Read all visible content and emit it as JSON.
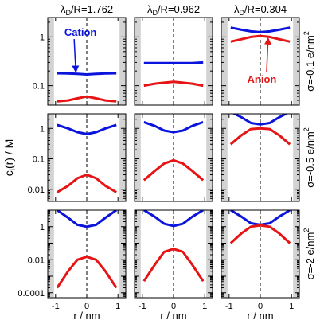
{
  "chart_data": {
    "type": "line",
    "x_label": "r / nm",
    "y_label_base": "c",
    "y_label_sub": "i",
    "y_label_rest": "(r) / M",
    "column_prefix_main": "λ",
    "column_prefix_sub": "D",
    "column_prefix_rest": "/R=",
    "column_values": [
      "1.762",
      "0.962",
      "0.304"
    ],
    "row_labels": [
      {
        "main": "σ=-0.1 e/nm",
        "sup": "2"
      },
      {
        "main": "σ=-0.5 e/nm",
        "sup": "2"
      },
      {
        "main": "σ=-2 e/nm",
        "sup": "2"
      }
    ],
    "x_ticks": [
      -1,
      0,
      1
    ],
    "xlim": [
      -1.25,
      1.25
    ],
    "y_scale": "log",
    "rows_ylim": [
      [
        0.04,
        2.5
      ],
      [
        0.004,
        3
      ],
      [
        5e-05,
        10
      ]
    ],
    "y_tick_labels": [
      [
        {
          "v": 1,
          "t": "1"
        },
        {
          "v": 0.1,
          "t": "0.1"
        }
      ],
      [
        {
          "v": 1,
          "t": "1"
        },
        {
          "v": 0.1,
          "t": "0.1"
        },
        {
          "v": 0.01,
          "t": "0.01"
        }
      ],
      [
        {
          "v": 1,
          "t": "1"
        },
        {
          "v": 0.01,
          "t": "0.01"
        },
        {
          "v": 0.0001,
          "t": "0.0001"
        }
      ]
    ],
    "series_colors": {
      "Cation": "#0a14dc",
      "Anion": "#e61414"
    },
    "annotations": [
      {
        "text": "Cation",
        "panel": [
          0,
          0
        ],
        "color": "#0a14dc",
        "pos": [
          -0.2,
          1.05
        ],
        "arrow_to": [
          -0.35,
          0.19
        ]
      },
      {
        "text": "Anion",
        "panel": [
          0,
          2
        ],
        "color": "#e61414",
        "pos": [
          0.05,
          0.115
        ],
        "arrow_to": [
          0.25,
          0.95
        ]
      }
    ],
    "panels": [
      [
        {
          "x": [
            -0.95,
            -0.6,
            -0.3,
            0,
            0.3,
            0.6,
            0.95
          ],
          "cation": [
            0.18,
            0.178,
            0.175,
            0.17,
            0.175,
            0.178,
            0.18
          ],
          "anion": [
            0.048,
            0.05,
            0.055,
            0.06,
            0.055,
            0.05,
            0.048
          ]
        },
        {
          "x": [
            -0.95,
            -0.6,
            -0.3,
            0,
            0.3,
            0.6,
            0.95
          ],
          "cation": [
            0.29,
            0.29,
            0.29,
            0.29,
            0.29,
            0.29,
            0.3
          ],
          "anion": [
            0.1,
            0.11,
            0.115,
            0.12,
            0.115,
            0.11,
            0.1
          ]
        },
        {
          "x": [
            -0.95,
            -0.6,
            -0.3,
            0,
            0.3,
            0.6,
            0.95
          ],
          "cation": [
            1.55,
            1.4,
            1.3,
            1.25,
            1.3,
            1.4,
            1.55
          ],
          "anion": [
            0.8,
            0.9,
            1.0,
            1.05,
            1.0,
            0.9,
            0.8
          ]
        }
      ],
      [
        {
          "x": [
            -0.95,
            -0.6,
            -0.3,
            0,
            0.3,
            0.6,
            0.95
          ],
          "cation": [
            1.3,
            1.0,
            0.75,
            0.65,
            0.75,
            1.0,
            1.3
          ],
          "anion": [
            0.008,
            0.013,
            0.023,
            0.03,
            0.023,
            0.013,
            0.008
          ]
        },
        {
          "x": [
            -0.95,
            -0.6,
            -0.3,
            0,
            0.3,
            0.6,
            0.95
          ],
          "cation": [
            1.6,
            1.2,
            0.85,
            0.75,
            0.85,
            1.2,
            1.6
          ],
          "anion": [
            0.02,
            0.04,
            0.07,
            0.09,
            0.07,
            0.04,
            0.02
          ]
        },
        {
          "x": [
            -0.95,
            -0.6,
            -0.3,
            0,
            0.3,
            0.6,
            0.95
          ],
          "cation": [
            3.5,
            2.3,
            1.5,
            1.35,
            1.5,
            2.3,
            3.5
          ],
          "anion": [
            0.3,
            0.6,
            0.95,
            1.0,
            0.95,
            0.6,
            0.3
          ]
        }
      ],
      [
        {
          "x": [
            -0.95,
            -0.6,
            -0.3,
            0,
            0.3,
            0.6,
            0.95
          ],
          "cation": [
            10,
            3.5,
            1.3,
            1.0,
            1.3,
            3.5,
            10
          ],
          "anion": [
            0.0002,
            0.002,
            0.01,
            0.015,
            0.01,
            0.002,
            0.0002
          ]
        },
        {
          "x": [
            -0.95,
            -0.6,
            -0.3,
            0,
            0.3,
            0.6,
            0.95
          ],
          "cation": [
            10,
            4,
            1.5,
            1.1,
            1.5,
            4,
            10
          ],
          "anion": [
            0.0005,
            0.005,
            0.03,
            0.045,
            0.03,
            0.005,
            0.0005
          ]
        },
        {
          "x": [
            -0.95,
            -0.6,
            -0.3,
            0,
            0.3,
            0.6,
            0.95
          ],
          "cation": [
            10,
            4,
            1.6,
            1.3,
            1.6,
            4,
            10
          ],
          "anion": [
            0.1,
            0.4,
            1.0,
            1.2,
            1.0,
            0.4,
            0.1
          ]
        }
      ]
    ],
    "shaded_band": "grey wall region beyond |r| ≈ 1.05 nm",
    "center_line": "dashed vertical line at r = 0",
    "grid": false
  }
}
